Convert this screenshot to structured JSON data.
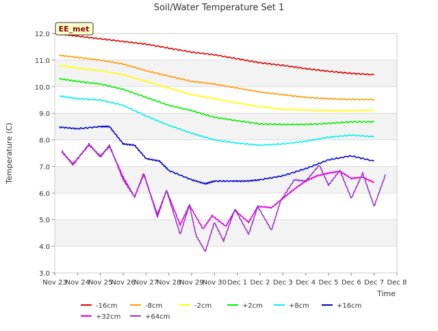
{
  "chart_data": {
    "type": "line",
    "title": "Soil/Water Temperature Set 1",
    "xlabel": "Time",
    "ylabel": "Temperature (C)",
    "ylim": [
      3.0,
      12.0
    ],
    "xlim": [
      0,
      15
    ],
    "x_ticks": [
      "Nov 23",
      "Nov 24",
      "Nov 25",
      "Nov 26",
      "Nov 27",
      "Nov 28",
      "Nov 29",
      "Nov 30",
      "Dec 1",
      "Dec 2",
      "Dec 3",
      "Dec 4",
      "Dec 5",
      "Dec 6",
      "Dec 7",
      "Dec 8"
    ],
    "y_ticks": [
      3.0,
      4.0,
      5.0,
      6.0,
      7.0,
      8.0,
      9.0,
      10.0,
      11.0,
      12.0
    ],
    "station_label": "EE_met",
    "grid": "alternating horizontal bands",
    "legend_placement": "bottom",
    "series": [
      {
        "name": "-16cm",
        "color": "#dd0000",
        "points": [
          [
            0.2,
            11.98
          ],
          [
            1,
            11.9
          ],
          [
            2,
            11.8
          ],
          [
            3,
            11.7
          ],
          [
            4,
            11.6
          ],
          [
            5,
            11.45
          ],
          [
            6,
            11.3
          ],
          [
            7,
            11.2
          ],
          [
            8,
            11.05
          ],
          [
            9,
            10.9
          ],
          [
            10,
            10.8
          ],
          [
            11,
            10.68
          ],
          [
            12,
            10.58
          ],
          [
            13,
            10.5
          ],
          [
            14,
            10.45
          ]
        ]
      },
      {
        "name": "-8cm",
        "color": "#ff9900",
        "points": [
          [
            0.2,
            11.18
          ],
          [
            1,
            11.1
          ],
          [
            2,
            11.0
          ],
          [
            3,
            10.85
          ],
          [
            4,
            10.6
          ],
          [
            5,
            10.4
          ],
          [
            6,
            10.2
          ],
          [
            7,
            10.1
          ],
          [
            8,
            9.95
          ],
          [
            9,
            9.8
          ],
          [
            10,
            9.7
          ],
          [
            11,
            9.6
          ],
          [
            12,
            9.55
          ],
          [
            13,
            9.52
          ],
          [
            14,
            9.52
          ]
        ]
      },
      {
        "name": "-2cm",
        "color": "#ffff00",
        "points": [
          [
            0.2,
            10.8
          ],
          [
            1,
            10.7
          ],
          [
            2,
            10.6
          ],
          [
            3,
            10.45
          ],
          [
            4,
            10.2
          ],
          [
            5,
            9.95
          ],
          [
            6,
            9.7
          ],
          [
            7,
            9.55
          ],
          [
            8,
            9.38
          ],
          [
            9,
            9.25
          ],
          [
            10,
            9.15
          ],
          [
            11,
            9.12
          ],
          [
            12,
            9.1
          ],
          [
            13,
            9.1
          ],
          [
            14,
            9.12
          ]
        ]
      },
      {
        "name": "+2cm",
        "color": "#00ee00",
        "points": [
          [
            0.2,
            10.3
          ],
          [
            1,
            10.2
          ],
          [
            2,
            10.1
          ],
          [
            3,
            9.9
          ],
          [
            4,
            9.6
          ],
          [
            5,
            9.3
          ],
          [
            6,
            9.1
          ],
          [
            7,
            8.85
          ],
          [
            8,
            8.72
          ],
          [
            9,
            8.6
          ],
          [
            10,
            8.58
          ],
          [
            11,
            8.58
          ],
          [
            12,
            8.62
          ],
          [
            13,
            8.68
          ],
          [
            14,
            8.68
          ]
        ]
      },
      {
        "name": "+8cm",
        "color": "#00eeee",
        "points": [
          [
            0.2,
            9.65
          ],
          [
            1,
            9.55
          ],
          [
            2,
            9.5
          ],
          [
            3,
            9.3
          ],
          [
            4,
            8.9
          ],
          [
            5,
            8.55
          ],
          [
            6,
            8.25
          ],
          [
            7,
            8.0
          ],
          [
            8,
            7.88
          ],
          [
            9,
            7.8
          ],
          [
            10,
            7.85
          ],
          [
            11,
            7.95
          ],
          [
            12,
            8.1
          ],
          [
            13,
            8.18
          ],
          [
            14,
            8.12
          ]
        ]
      },
      {
        "name": "+16cm",
        "color": "#0000cc",
        "points": [
          [
            0.2,
            8.48
          ],
          [
            1,
            8.42
          ],
          [
            2,
            8.5
          ],
          [
            2.4,
            8.5
          ],
          [
            3,
            7.85
          ],
          [
            3.5,
            7.8
          ],
          [
            4,
            7.3
          ],
          [
            4.6,
            7.2
          ],
          [
            5,
            6.85
          ],
          [
            6,
            6.5
          ],
          [
            6.6,
            6.35
          ],
          [
            7,
            6.45
          ],
          [
            7.8,
            6.45
          ],
          [
            8.4,
            6.45
          ],
          [
            9,
            6.5
          ],
          [
            10,
            6.65
          ],
          [
            11,
            6.92
          ],
          [
            12,
            7.25
          ],
          [
            13,
            7.4
          ],
          [
            14,
            7.2
          ]
        ]
      },
      {
        "name": "+32cm",
        "color": "#dd00dd",
        "points": [
          [
            0.3,
            7.55
          ],
          [
            0.8,
            7.1
          ],
          [
            1.5,
            7.8
          ],
          [
            2,
            7.4
          ],
          [
            2.4,
            7.75
          ],
          [
            3,
            6.6
          ],
          [
            3.5,
            5.85
          ],
          [
            3.9,
            6.7
          ],
          [
            4.5,
            5.2
          ],
          [
            4.9,
            6.1
          ],
          [
            5.5,
            4.8
          ],
          [
            5.9,
            5.55
          ],
          [
            6.5,
            4.65
          ],
          [
            6.9,
            5.15
          ],
          [
            7.5,
            4.75
          ],
          [
            7.9,
            5.35
          ],
          [
            8.5,
            4.9
          ],
          [
            8.9,
            5.5
          ],
          [
            9.5,
            5.45
          ],
          [
            10,
            5.8
          ],
          [
            10.5,
            6.15
          ],
          [
            11,
            6.45
          ],
          [
            11.5,
            6.65
          ],
          [
            12,
            6.75
          ],
          [
            12.5,
            6.82
          ],
          [
            13,
            6.55
          ],
          [
            13.5,
            6.6
          ],
          [
            14,
            6.4
          ]
        ]
      },
      {
        "name": "+64cm",
        "color": "#9933cc",
        "points": [
          [
            0.3,
            7.6
          ],
          [
            0.8,
            7.05
          ],
          [
            1.5,
            7.85
          ],
          [
            2,
            7.35
          ],
          [
            2.4,
            7.8
          ],
          [
            3,
            6.5
          ],
          [
            3.5,
            5.85
          ],
          [
            3.9,
            6.75
          ],
          [
            4.5,
            5.1
          ],
          [
            4.9,
            6.1
          ],
          [
            5.5,
            4.45
          ],
          [
            5.9,
            5.55
          ],
          [
            6.2,
            4.4
          ],
          [
            6.6,
            3.8
          ],
          [
            7,
            4.9
          ],
          [
            7.4,
            4.2
          ],
          [
            7.9,
            5.4
          ],
          [
            8.5,
            4.45
          ],
          [
            8.9,
            5.5
          ],
          [
            9.5,
            4.6
          ],
          [
            9.9,
            5.7
          ],
          [
            10.5,
            6.5
          ],
          [
            11,
            6.45
          ],
          [
            11.6,
            7.05
          ],
          [
            12,
            6.3
          ],
          [
            12.5,
            6.85
          ],
          [
            13,
            5.8
          ],
          [
            13.5,
            6.75
          ],
          [
            14,
            5.5
          ],
          [
            14.5,
            6.7
          ]
        ]
      }
    ]
  }
}
